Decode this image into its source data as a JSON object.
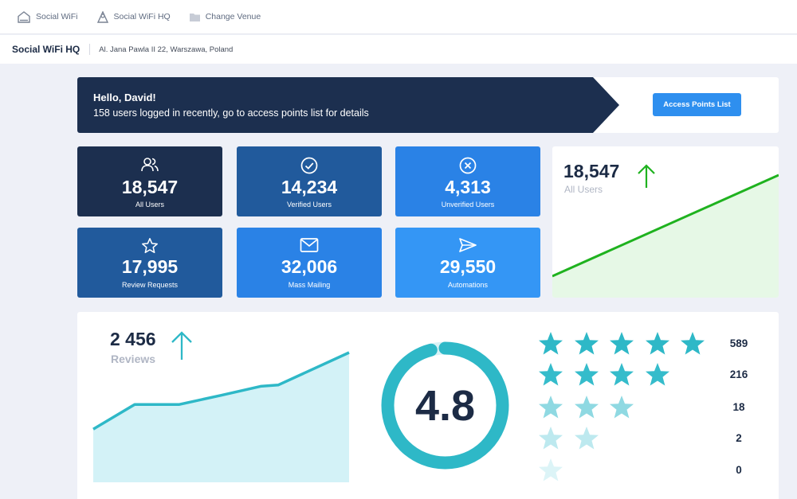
{
  "nav": {
    "items": [
      {
        "label": "Social WiFi",
        "icon": "home-icon"
      },
      {
        "label": "Social WiFi HQ",
        "icon": "venue-icon"
      },
      {
        "label": "Change Venue",
        "icon": "folder-icon"
      }
    ]
  },
  "venue": {
    "name": "Social WiFi HQ",
    "address": "Al. Jana Pawla II 22, Warszawa, Poland"
  },
  "hello": {
    "title": "Hello, David!",
    "subtitle": "158 users logged in recently, go to access points list for details",
    "button_label": "Access Points List"
  },
  "stats": [
    {
      "value": "18,547",
      "label": "All Users",
      "icon": "users-icon",
      "color": "#1c2f4f"
    },
    {
      "value": "14,234",
      "label": "Verified Users",
      "icon": "check-circle-icon",
      "color": "#215a9c"
    },
    {
      "value": "4,313",
      "label": "Unverified Users",
      "icon": "x-circle-icon",
      "color": "#2a82e6"
    },
    {
      "value": "17,995",
      "label": "Review Requests",
      "icon": "star-outline-icon",
      "color": "#215a9c"
    },
    {
      "value": "32,006",
      "label": "Mass Mailing",
      "icon": "mail-icon",
      "color": "#2a82e6"
    },
    {
      "value": "29,550",
      "label": "Automations",
      "icon": "send-icon",
      "color": "#3496f5"
    }
  ],
  "users_trend": {
    "value": "18,547",
    "label": "All Users",
    "trend": "up",
    "color": "#1fb21f"
  },
  "reviews": {
    "value": "2 456",
    "label": "Reviews",
    "trend": "up",
    "color": "#2eb8c7",
    "chart_data": {
      "type": "area",
      "values": [
        0.41,
        0.6,
        0.6,
        0.67,
        0.74,
        0.75,
        1.0
      ]
    }
  },
  "rating": {
    "value": "4.8",
    "fraction": 0.96,
    "distribution": [
      {
        "stars": 5,
        "count": "589"
      },
      {
        "stars": 4,
        "count": "216"
      },
      {
        "stars": 3,
        "count": "18"
      },
      {
        "stars": 2,
        "count": "2"
      },
      {
        "stars": 1,
        "count": "0"
      }
    ]
  }
}
